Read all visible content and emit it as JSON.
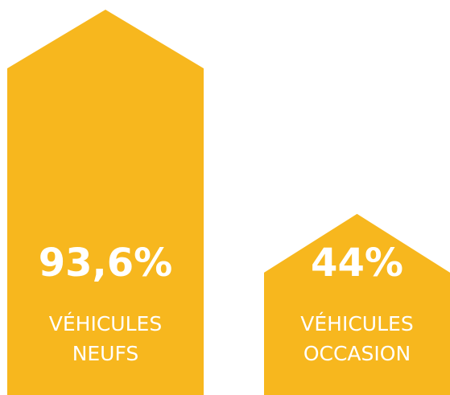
{
  "chart_data": {
    "type": "bar",
    "categories": [
      [
        "VÉHICULES",
        "NEUFS"
      ],
      [
        "VÉHICULES",
        "OCCASION"
      ]
    ],
    "values": [
      93.6,
      44
    ],
    "value_labels": [
      "93,6%",
      "44%"
    ],
    "color": "#f7b71e"
  }
}
